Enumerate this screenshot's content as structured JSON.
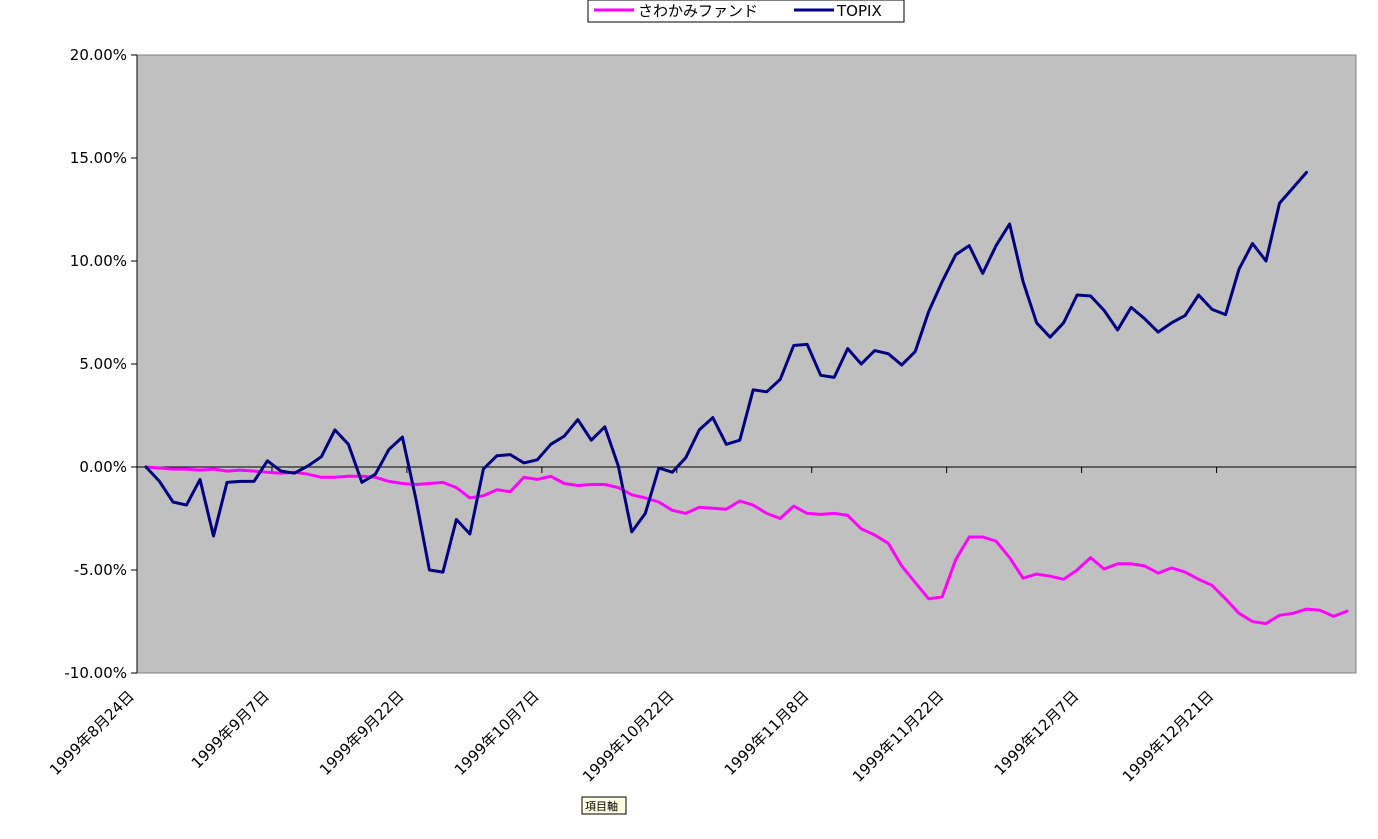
{
  "chart_data": {
    "type": "line",
    "title": "",
    "xlabel": "",
    "ylabel": "",
    "ylim": [
      -10,
      20
    ],
    "y_ticks": [
      "20.00%",
      "15.00%",
      "10.00%",
      "5.00%",
      "0.00%",
      "-5.00%",
      "-10.00%"
    ],
    "x_tick_labels": [
      "1999年8月24日",
      "1999年9月7日",
      "1999年9月22日",
      "1999年10月7日",
      "1999年10月22日",
      "1999年11月8日",
      "1999年11月22日",
      "1999年12月7日",
      "1999年12月21日"
    ],
    "x_tick_index": [
      0,
      10,
      20,
      30,
      40,
      50,
      60,
      70,
      80
    ],
    "legend_placement": "top-center",
    "grid": false,
    "plot_background": "#c0c0c0",
    "axis_tooltip": "項目軸",
    "series": [
      {
        "name": "さわかみファンド",
        "color": "#ff00ff",
        "values": [
          0,
          -0.05,
          -0.1,
          -0.1,
          -0.15,
          -0.1,
          -0.2,
          -0.15,
          -0.2,
          -0.25,
          -0.3,
          -0.25,
          -0.35,
          -0.5,
          -0.5,
          -0.45,
          -0.45,
          -0.5,
          -0.7,
          -0.8,
          -0.85,
          -0.8,
          -0.75,
          -1.0,
          -1.5,
          -1.4,
          -1.1,
          -1.2,
          -0.5,
          -0.6,
          -0.45,
          -0.8,
          -0.9,
          -0.85,
          -0.85,
          -1.0,
          -1.35,
          -1.5,
          -1.7,
          -2.1,
          -2.25,
          -1.95,
          -2.0,
          -2.05,
          -1.65,
          -1.85,
          -2.25,
          -2.5,
          -1.9,
          -2.25,
          -2.3,
          -2.25,
          -2.35,
          -3.0,
          -3.3,
          -3.7,
          -4.8,
          -5.6,
          -6.4,
          -6.3,
          -4.5,
          -3.4,
          -3.4,
          -3.6,
          -4.4,
          -5.4,
          -5.2,
          -5.3,
          -5.45,
          -5.0,
          -4.4,
          -4.95,
          -4.7,
          -4.7,
          -4.8,
          -5.15,
          -4.9,
          -5.1,
          -5.45,
          -5.75,
          -6.4,
          -7.1,
          -7.5,
          -7.6,
          -7.2,
          -7.1,
          -6.9,
          -6.95,
          -7.25,
          -7.0
        ]
      },
      {
        "name": "TOPIX",
        "color": "#000080",
        "values": [
          0,
          -0.7,
          -1.7,
          -1.85,
          -0.6,
          -3.35,
          -0.75,
          -0.7,
          -0.7,
          0.3,
          -0.2,
          -0.3,
          0.05,
          0.5,
          1.8,
          1.1,
          -0.75,
          -0.35,
          0.85,
          1.45,
          -1.55,
          -5.0,
          -5.1,
          -2.55,
          -3.25,
          -0.1,
          0.55,
          0.6,
          0.2,
          0.35,
          1.1,
          1.5,
          2.3,
          1.3,
          1.95,
          0.05,
          -3.15,
          -2.25,
          -0.05,
          -0.25,
          0.45,
          1.8,
          2.4,
          1.1,
          1.3,
          3.75,
          3.65,
          4.25,
          5.9,
          5.95,
          4.45,
          4.35,
          5.75,
          5.0,
          5.65,
          5.5,
          4.95,
          5.6,
          7.55,
          9.0,
          10.3,
          10.75,
          9.4,
          10.75,
          11.8,
          9.0,
          7.0,
          6.3,
          7.0,
          8.35,
          8.3,
          7.6,
          6.65,
          7.75,
          7.2,
          6.55,
          7.0,
          7.35,
          8.35,
          7.65,
          7.4,
          9.6,
          10.85,
          10.0,
          12.8,
          13.55,
          14.3
        ]
      }
    ]
  }
}
